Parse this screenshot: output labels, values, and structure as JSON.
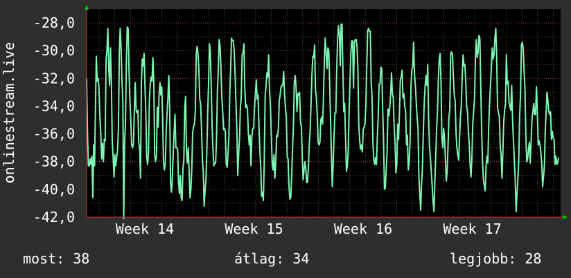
{
  "chart_data": {
    "type": "line",
    "title": "",
    "xlabel": "",
    "ylabel": "onlinestream.live",
    "ylim": [
      -42,
      -27
    ],
    "yticks": [
      "-28,0",
      "-30,0",
      "-32,0",
      "-34,0",
      "-36,0",
      "-38,0",
      "-40,0",
      "-42,0"
    ],
    "ytick_values": [
      -28,
      -30,
      -32,
      -34,
      -36,
      -38,
      -40,
      -42
    ],
    "xticks": [
      "Week 14",
      "Week 15",
      "Week 16",
      "Week 17"
    ],
    "grid": true,
    "colors": {
      "background": "#2e2e2e",
      "plot_bg": "#000000",
      "grid": "#5a5a5a",
      "line": "#7ff5b3",
      "axis": "#cc3333",
      "arrow": "#00cc00"
    },
    "series": [
      {
        "values": [
          -32,
          -36,
          -38.3,
          -38.3,
          -37.8,
          -38.2,
          -37.6,
          -40.6,
          -36.8,
          -38.3,
          -34.1,
          -30.4,
          -32.2,
          -32,
          -32.7,
          -34.8,
          -35.9,
          -37.8,
          -36.7,
          -38,
          -36.4,
          -36.5,
          -30.6,
          -30,
          -28.4,
          -31.2,
          -32.5,
          -29.8,
          -32.2,
          -36.5,
          -37.7,
          -39.1,
          -37.5,
          -38.3,
          -37.7,
          -37.2,
          -35.6,
          -30.2,
          -28.4,
          -29.8,
          -32.2,
          -33.6,
          -42.1,
          -36.6,
          -35.1,
          -30.7,
          -28.3,
          -28.4,
          -31.5,
          -33.6,
          -35,
          -36.8,
          -37,
          -36.7,
          -34.3,
          -32.3,
          -34.3,
          -34.5,
          -34.3,
          -36.6,
          -37,
          -39.2,
          -32.3,
          -30.6,
          -31.1,
          -30.2,
          -32.5,
          -34.5,
          -37.6,
          -38.2,
          -37.4,
          -33.6,
          -32.4,
          -31.9,
          -32.2,
          -30.5,
          -32.2,
          -37.5,
          -38,
          -37.6,
          -34.1,
          -35.5,
          -33.1,
          -32.3,
          -33.2,
          -32.6,
          -34.7,
          -38,
          -38.6,
          -38.1,
          -35.9,
          -34.5,
          -33.4,
          -31.8,
          -34.2,
          -39.5,
          -40.2,
          -39.1,
          -37.4,
          -35.9,
          -34.6,
          -37,
          -37,
          -37.1,
          -39.4,
          -40.3,
          -39,
          -40.6,
          -40.8,
          -38.5,
          -37.9,
          -34.2,
          -33.3,
          -37.2,
          -38.1,
          -37,
          -38.7,
          -40.6,
          -40,
          -38.5,
          -35.9,
          -35.5,
          -35.3,
          -34.4,
          -30.3,
          -29.7,
          -30.2,
          -31.3,
          -33.5,
          -33.8,
          -35.6,
          -37.8,
          -38.7,
          -41.2,
          -40.1,
          -39.3,
          -37.3,
          -34.4,
          -32.4,
          -29.5,
          -30.1,
          -32.5,
          -35.5,
          -37.2,
          -38.3,
          -38.1,
          -38.1,
          -36.3,
          -32.9,
          -31.4,
          -29.2,
          -29.7,
          -31.2,
          -33.4,
          -34.4,
          -35.7,
          -35.6,
          -35.8,
          -38.2,
          -38.4,
          -37.4,
          -36.2,
          -33.1,
          -31.2,
          -29.1,
          -29.3,
          -29.3,
          -30.1,
          -31.7,
          -33.8,
          -35.7,
          -39,
          -37.5,
          -36.3,
          -34.1,
          -33.4,
          -30.3,
          -30.2,
          -29.5,
          -32.7,
          -34.1,
          -33.9,
          -34.2,
          -35.9,
          -36.8,
          -36.1,
          -38.3,
          -36.2,
          -35.6,
          -35.6,
          -34.1,
          -33.1,
          -32.1,
          -33.5,
          -33.2,
          -35.4,
          -37.2,
          -38.3,
          -40.5,
          -40.2,
          -40.8,
          -38,
          -33.3,
          -32.6,
          -31.6,
          -31.9,
          -30.3,
          -32.9,
          -34,
          -36.1,
          -38.1,
          -38.6,
          -37.5,
          -39.2,
          -38.1,
          -36.1,
          -36.2,
          -35.6,
          -33.6,
          -33.2,
          -32.6,
          -32.5,
          -32.5,
          -31.5,
          -33.2,
          -34.1,
          -34.8,
          -37.7,
          -37.8,
          -39.8,
          -40.7,
          -40.6,
          -39.1,
          -37.1,
          -35.4,
          -32.3,
          -31.8,
          -32.6,
          -34.4,
          -33.1,
          -33.2,
          -33,
          -35.1,
          -35.5,
          -37.6,
          -39.3,
          -38.6,
          -38,
          -38.5,
          -39.5,
          -39.5,
          -38.3,
          -36.7,
          -35.6,
          -33.8,
          -31.7,
          -30.4,
          -30.5,
          -29.6,
          -32.9,
          -33.4,
          -34.7,
          -36.6,
          -36.8,
          -36.6,
          -35,
          -34.8,
          -35.3,
          -33.4,
          -30.6,
          -29.1,
          -30.2,
          -31.3,
          -29.8,
          -30,
          -32.3,
          -35,
          -37.4,
          -39.8,
          -38.1,
          -36.1,
          -34.5,
          -34.5,
          -31.4,
          -29.2,
          -28.2,
          -28.8,
          -31.1,
          -28.1,
          -28.1,
          -31.3,
          -34.4,
          -33.8,
          -36.3,
          -38.7,
          -38.3,
          -37.2,
          -34.4,
          -32.3,
          -30.2,
          -29.3,
          -29.3,
          -32.7,
          -29.4,
          -29.2,
          -29.2,
          -29.7,
          -31.4,
          -35.4,
          -36.5,
          -37.1,
          -36.8,
          -37.3,
          -35.7,
          -35.5,
          -35.3,
          -33.9,
          -31.1,
          -28.6,
          -28.4,
          -28.6,
          -28.6,
          -32.2,
          -33.4,
          -36.7,
          -37.9,
          -38.2,
          -37.7,
          -38.2,
          -36.2,
          -34.6,
          -32.4,
          -32.4,
          -31.2,
          -31.3,
          -34.2,
          -36.4,
          -40,
          -39.9,
          -38.6,
          -37.3,
          -34.2,
          -34.7,
          -34.1,
          -33.2,
          -31.6,
          -33.1,
          -33.4,
          -35.5,
          -36.6,
          -38.8,
          -38.2,
          -35.3,
          -36.4,
          -34.4,
          -32.1,
          -31.9,
          -31.4,
          -33.4,
          -33.1,
          -34,
          -34.4,
          -36.8,
          -36.1,
          -38.6,
          -38,
          -36.6,
          -32.6,
          -31.4,
          -31.2,
          -29.4,
          -31.7,
          -32.5,
          -33.7,
          -34.8,
          -35.6,
          -39.1,
          -40.3,
          -41.5,
          -39.6,
          -38.4,
          -35.9,
          -33.8,
          -32.6,
          -31.8,
          -32.5,
          -31,
          -35,
          -36.9,
          -37.7,
          -38.7,
          -39.7,
          -40.8,
          -41.6,
          -39.6,
          -37.7,
          -35.7,
          -34.4,
          -32.1,
          -30.6,
          -30.2,
          -32.2,
          -36.3,
          -37,
          -35.6,
          -36.3,
          -37.8,
          -39.4,
          -38.7,
          -36.8,
          -34.8,
          -34.2,
          -30.2,
          -30.1,
          -30.3,
          -31.9,
          -33.2,
          -33.6,
          -35.9,
          -37,
          -37.5,
          -37.9,
          -36.3,
          -34.8,
          -33.9,
          -31.8,
          -30.3,
          -31.1,
          -31,
          -32.2,
          -34,
          -34.4,
          -35.8,
          -36.8,
          -38.3,
          -39.1,
          -37.7,
          -35.2,
          -34.3,
          -33.4,
          -30.5,
          -29.2,
          -30.5,
          -30.1,
          -28.9,
          -29.1,
          -32.6,
          -35.7,
          -38,
          -39.3,
          -39.7,
          -40.1,
          -38.3,
          -37.6,
          -38.1,
          -35.4,
          -33.7,
          -32.5,
          -31.3,
          -29.8,
          -30.6,
          -30.3,
          -29.1,
          -28.4,
          -30.4,
          -34.1,
          -34.5,
          -34.7,
          -36.9,
          -37.5,
          -39.2,
          -37.4,
          -35.1,
          -34.3,
          -33.8,
          -30.3,
          -32.4,
          -32.2,
          -33.7,
          -34,
          -34.3,
          -32.5,
          -35,
          -36.5,
          -37.9,
          -39.3,
          -41.6,
          -40.3,
          -39.2,
          -37.9,
          -34.7,
          -33.2,
          -29.6,
          -29.4,
          -29.8,
          -31.4,
          -32.7,
          -36.1,
          -38,
          -37.8,
          -37.1,
          -36.6,
          -38.1,
          -36.5,
          -34.9,
          -34.4,
          -33.8,
          -34.6,
          -34.6,
          -32.6,
          -34.4,
          -36.8,
          -36.5,
          -36.8,
          -37.3,
          -38.1,
          -39.8,
          -39.1,
          -38.3,
          -35.8,
          -34.4,
          -33,
          -33.6,
          -34.4,
          -34.6,
          -34.4,
          -36.4,
          -35.8,
          -36.3,
          -36.4,
          -38.2,
          -37.6,
          -38.2,
          -38.1,
          -37.7
        ]
      }
    ]
  },
  "stats": {
    "current": "most: 38",
    "average": "átlag: 34",
    "max": "legjobb: 28"
  }
}
